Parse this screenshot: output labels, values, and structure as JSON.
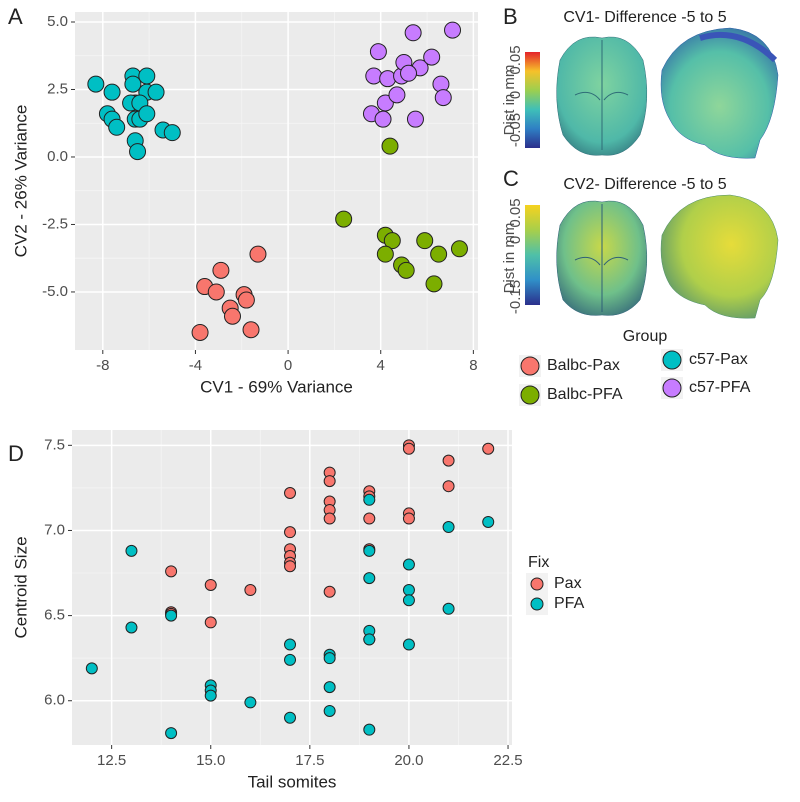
{
  "chart_data": [
    {
      "type": "scatter",
      "panel": "A",
      "x_label": "CV1 - 69% Variance",
      "y_label": "CV2 - 26% Variance",
      "xlim": [
        -9.2,
        8.2
      ],
      "ylim": [
        -7.15,
        5.37
      ],
      "xticks": [
        -8,
        -4,
        0,
        4,
        8
      ],
      "yticks": [
        {
          "value": -5,
          "label": "-5.0"
        },
        -2.5,
        {
          "value": 0,
          "label": "0.0"
        },
        2.5,
        {
          "value": 5,
          "label": "5.0"
        }
      ],
      "grid": true,
      "legend": {
        "title": "Group"
      },
      "series": [
        {
          "name": "Balbc-Pax",
          "color": "#f8766d",
          "x": [
            -1.3,
            -2.9,
            -3.6,
            -3.1,
            -2.5,
            -2.4,
            -1.9,
            -1.8,
            -1.6,
            -3.8
          ],
          "y": [
            -3.6,
            -4.2,
            -4.8,
            -5.0,
            -5.6,
            -5.9,
            -5.1,
            -5.3,
            -6.4,
            -6.5
          ]
        },
        {
          "name": "Balbc-PFA",
          "color": "#7cae00",
          "x": [
            4.4,
            2.4,
            4.2,
            4.5,
            4.2,
            5.9,
            6.5,
            7.4,
            4.9,
            5.1,
            6.3
          ],
          "y": [
            0.4,
            -2.3,
            -2.9,
            -3.1,
            -3.6,
            -3.1,
            -3.6,
            -3.4,
            -4.0,
            -4.2,
            -4.7
          ]
        },
        {
          "name": "c57-Pax",
          "color": "#00bfc4",
          "x": [
            -8.3,
            -7.6,
            -6.7,
            -6.7,
            -6.1,
            -6.6,
            -6.1,
            -6.8,
            -6.4,
            -5.7,
            -7.8,
            -7.6,
            -7.4,
            -6.6,
            -6.4,
            -6.1,
            -5.4,
            -5.0,
            -6.6,
            -6.5
          ],
          "y": [
            2.7,
            2.4,
            3.0,
            2.7,
            3.0,
            2.0,
            2.4,
            2.0,
            2.0,
            2.4,
            1.6,
            1.4,
            1.1,
            1.4,
            1.4,
            1.6,
            1.0,
            0.9,
            0.6,
            0.2
          ]
        },
        {
          "name": "c57-PFA",
          "color": "#c77cff",
          "x": [
            3.9,
            5.4,
            7.1,
            3.7,
            4.3,
            4.9,
            5.7,
            5.0,
            5.2,
            6.2,
            6.6,
            6.7,
            4.2,
            4.7,
            3.6,
            4.1,
            5.5
          ],
          "y": [
            3.9,
            4.6,
            4.7,
            3.0,
            2.9,
            3.0,
            3.3,
            3.5,
            3.1,
            3.7,
            2.7,
            2.2,
            2.0,
            2.3,
            1.6,
            1.4,
            1.4
          ]
        }
      ]
    },
    {
      "type": "scatter",
      "panel": "D",
      "x_label": "Tail somites",
      "y_label": "Centroid Size",
      "xlim": [
        11.5,
        22.6
      ],
      "ylim": [
        5.74,
        7.59
      ],
      "xticks": [
        12.5,
        {
          "value": 15,
          "label": "15.0"
        },
        17.5,
        {
          "value": 20,
          "label": "20.0"
        },
        22.5
      ],
      "yticks": [
        {
          "value": 6,
          "label": "6.0"
        },
        6.5,
        {
          "value": 7,
          "label": "7.0"
        },
        7.5
      ],
      "grid": true,
      "legend": {
        "title": "Fix"
      },
      "series": [
        {
          "name": "Pax",
          "color": "#f8766d",
          "x": [
            14,
            14,
            14,
            15,
            15,
            16,
            17,
            17,
            17,
            17,
            17,
            17,
            18,
            18,
            18,
            18,
            18,
            18,
            19,
            19,
            19,
            19,
            19,
            20,
            20,
            20,
            20,
            21,
            21,
            22
          ],
          "y": [
            6.76,
            6.52,
            6.51,
            6.68,
            6.46,
            6.65,
            7.22,
            6.99,
            6.89,
            6.85,
            6.81,
            6.79,
            7.34,
            7.29,
            7.17,
            7.12,
            7.07,
            6.64,
            7.23,
            7.2,
            7.07,
            6.89,
            6.36,
            7.5,
            7.48,
            7.1,
            7.07,
            7.41,
            7.26,
            7.48
          ]
        },
        {
          "name": "PFA",
          "color": "#00bfc4",
          "x": [
            12,
            13,
            13,
            14,
            14,
            15,
            15,
            15,
            16,
            17,
            17,
            17,
            18,
            18,
            18,
            18,
            19,
            19,
            19,
            19,
            19,
            19,
            20,
            20,
            20,
            20,
            21,
            21,
            22
          ],
          "y": [
            6.19,
            6.88,
            6.43,
            6.5,
            5.81,
            6.09,
            6.06,
            6.03,
            5.99,
            6.33,
            6.24,
            5.9,
            6.27,
            6.25,
            6.08,
            5.94,
            7.18,
            6.88,
            6.72,
            6.41,
            6.36,
            5.83,
            6.8,
            6.65,
            6.59,
            6.33,
            7.02,
            6.54,
            7.05
          ]
        }
      ]
    }
  ],
  "panels": {
    "B": {
      "letter": "B",
      "title": "CV1- Difference -5 to 5",
      "colorbar_label": "Dist in mm",
      "colorbar_ticks": [
        "0.05",
        "0",
        "-0.05"
      ]
    },
    "C": {
      "letter": "C",
      "title": "CV2- Difference -5 to 5",
      "colorbar_label": "Dist in mm",
      "colorbar_ticks": [
        "0.05",
        "0",
        "-0.15"
      ]
    }
  }
}
